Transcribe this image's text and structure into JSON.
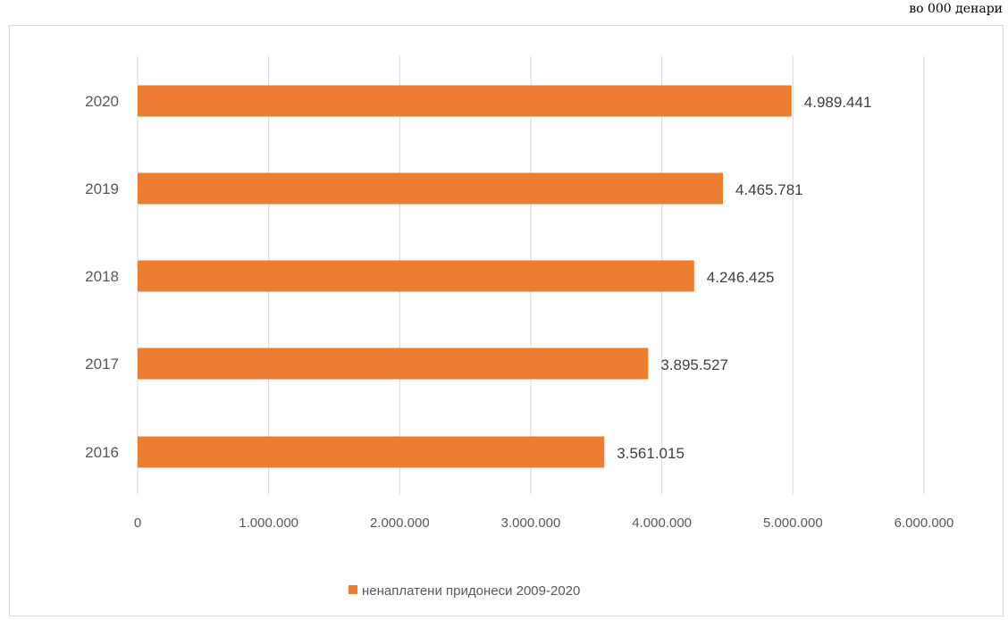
{
  "unit_note": "во 000 денари",
  "chart_data": {
    "type": "bar",
    "orientation": "horizontal",
    "categories": [
      "2016",
      "2017",
      "2018",
      "2019",
      "2020"
    ],
    "series": [
      {
        "name": "ненаплатени придонеси 2009-2020",
        "values": [
          3561015,
          3895527,
          4246425,
          4465781,
          4989441
        ],
        "labels": [
          "3.561.015",
          "3.895.527",
          "4.246.425",
          "4.465.781",
          "4.989.441"
        ],
        "color": "#ED7D31"
      }
    ],
    "xlim": [
      0,
      6000000
    ],
    "xticks": [
      0,
      1000000,
      2000000,
      3000000,
      4000000,
      5000000,
      6000000
    ],
    "xtick_labels": [
      "0",
      "1.000.000",
      "2.000.000",
      "3.000.000",
      "4.000.000",
      "5.000.000",
      "6.000.000"
    ],
    "grid": "vertical",
    "legend_position": "bottom"
  }
}
